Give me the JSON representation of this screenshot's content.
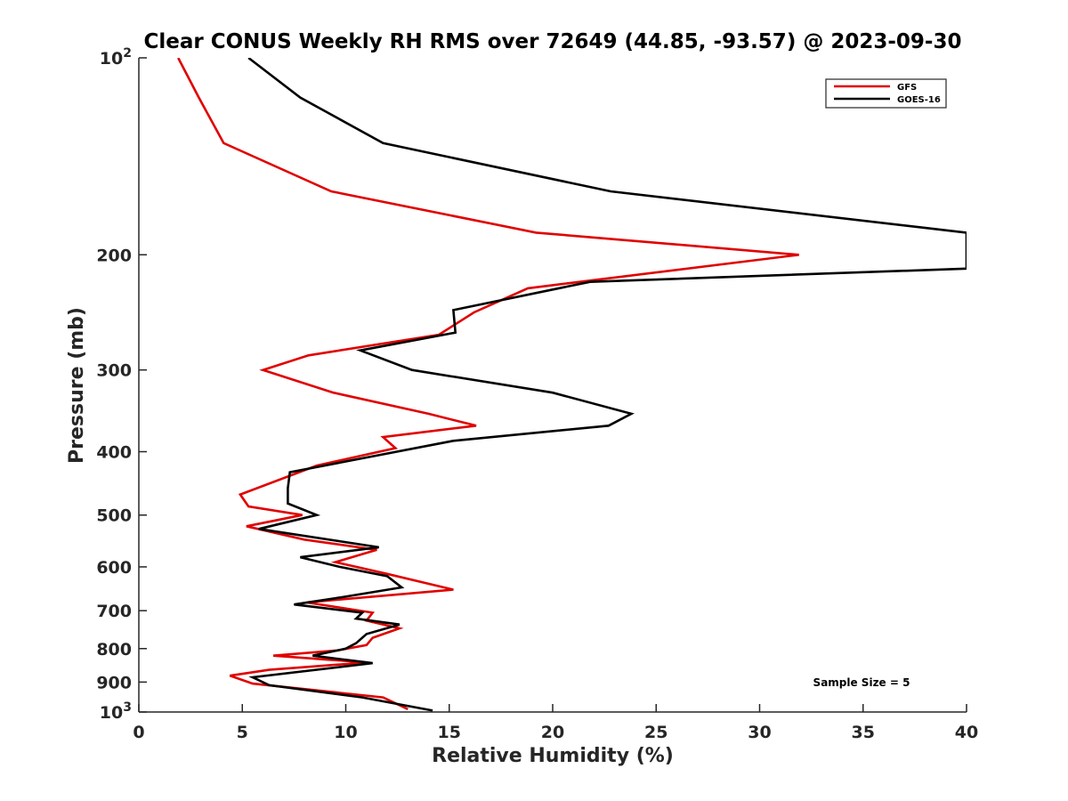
{
  "chart_data": {
    "type": "line",
    "title": "Clear CONUS Weekly RH RMS over 72649 (44.85, -93.57) @ 2023-09-30",
    "xlabel": "Relative Humidity (%)",
    "ylabel": "Pressure (mb)",
    "xlim": [
      0,
      40
    ],
    "ylim": [
      100,
      1000
    ],
    "y_scale": "log",
    "y_reversed": true,
    "x_ticks": [
      "0",
      "5",
      "10",
      "15",
      "20",
      "25",
      "30",
      "35",
      "40"
    ],
    "y_ticks": [
      {
        "value": 100,
        "base": "10",
        "exp": "2"
      },
      {
        "value": 200,
        "label": "200"
      },
      {
        "value": 300,
        "label": "300"
      },
      {
        "value": 400,
        "label": "400"
      },
      {
        "value": 500,
        "label": "500"
      },
      {
        "value": 600,
        "label": "600"
      },
      {
        "value": 700,
        "label": "700"
      },
      {
        "value": 800,
        "label": "800"
      },
      {
        "value": 900,
        "label": "900"
      },
      {
        "value": 1000,
        "base": "10",
        "exp": "3"
      }
    ],
    "legend_position": "top-right",
    "annotation": "Sample Size = 5",
    "series": [
      {
        "name": "GFS",
        "color": "#e00000",
        "points": [
          [
            1.9,
            100
          ],
          [
            2.9,
            115
          ],
          [
            4.1,
            135
          ],
          [
            9.3,
            160
          ],
          [
            19.2,
            185
          ],
          [
            31.9,
            200
          ],
          [
            18.8,
            225
          ],
          [
            16.2,
            245
          ],
          [
            14.5,
            265
          ],
          [
            8.2,
            285
          ],
          [
            6.0,
            300
          ],
          [
            9.4,
            325
          ],
          [
            14.0,
            350
          ],
          [
            16.3,
            365
          ],
          [
            11.8,
            380
          ],
          [
            12.4,
            395
          ],
          [
            8.6,
            420
          ],
          [
            4.9,
            465
          ],
          [
            5.3,
            485
          ],
          [
            7.9,
            500
          ],
          [
            5.2,
            520
          ],
          [
            8.0,
            545
          ],
          [
            11.5,
            565
          ],
          [
            9.5,
            590
          ],
          [
            12.0,
            615
          ],
          [
            15.2,
            650
          ],
          [
            8.1,
            680
          ],
          [
            11.3,
            705
          ],
          [
            11.0,
            725
          ],
          [
            12.6,
            745
          ],
          [
            11.3,
            770
          ],
          [
            11.0,
            790
          ],
          [
            9.6,
            805
          ],
          [
            6.5,
            820
          ],
          [
            11.0,
            840
          ],
          [
            6.3,
            862
          ],
          [
            4.4,
            880
          ],
          [
            5.5,
            905
          ],
          [
            11.8,
            950
          ],
          [
            13.0,
            990
          ]
        ]
      },
      {
        "name": "GOES-16",
        "color": "#000000",
        "points": [
          [
            5.3,
            100
          ],
          [
            7.8,
            115
          ],
          [
            11.8,
            135
          ],
          [
            22.8,
            160
          ],
          [
            40.0,
            185
          ],
          [
            40.0,
            210
          ],
          [
            21.8,
            220
          ],
          [
            15.2,
            243
          ],
          [
            15.3,
            263
          ],
          [
            10.7,
            280
          ],
          [
            13.2,
            300
          ],
          [
            20.0,
            325
          ],
          [
            23.8,
            350
          ],
          [
            22.7,
            365
          ],
          [
            15.2,
            385
          ],
          [
            7.3,
            430
          ],
          [
            7.2,
            455
          ],
          [
            7.2,
            480
          ],
          [
            8.6,
            500
          ],
          [
            5.8,
            525
          ],
          [
            11.6,
            560
          ],
          [
            7.8,
            580
          ],
          [
            9.7,
            600
          ],
          [
            12.0,
            620
          ],
          [
            12.7,
            645
          ],
          [
            9.5,
            670
          ],
          [
            7.5,
            685
          ],
          [
            10.8,
            705
          ],
          [
            10.5,
            720
          ],
          [
            12.6,
            735
          ],
          [
            11.0,
            760
          ],
          [
            10.5,
            785
          ],
          [
            10.0,
            800
          ],
          [
            8.4,
            820
          ],
          [
            11.3,
            842
          ],
          [
            5.5,
            885
          ],
          [
            6.3,
            910
          ],
          [
            10.8,
            950
          ],
          [
            14.2,
            995
          ]
        ]
      }
    ]
  }
}
